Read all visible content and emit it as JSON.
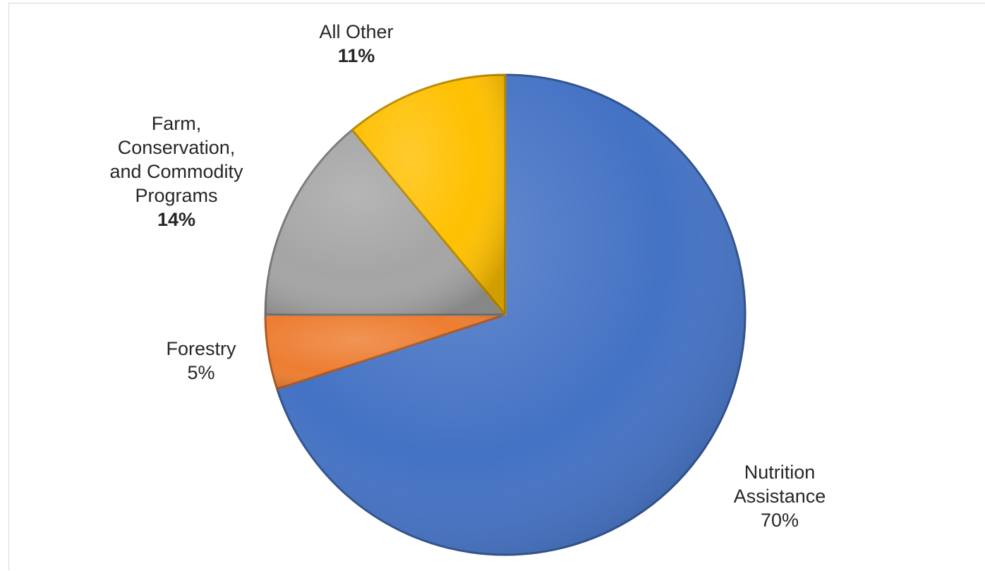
{
  "chart_data": {
    "type": "pie",
    "slices": [
      {
        "name": "Nutrition Assistance",
        "value": 70,
        "pct_label": "70%",
        "color": "#4472C4",
        "label_lines": [
          "Nutrition",
          "Assistance"
        ]
      },
      {
        "name": "Forestry",
        "value": 5,
        "pct_label": "5%",
        "color": "#ED7D31",
        "label_lines": [
          "Forestry"
        ]
      },
      {
        "name": "Farm, Conservation, and Commodity Programs",
        "value": 14,
        "pct_label": "14%",
        "color": "#A5A5A5",
        "label_lines": [
          "Farm,",
          "Conservation,",
          "and Commodity",
          "Programs"
        ]
      },
      {
        "name": "All Other",
        "value": 11,
        "pct_label": "11%",
        "color": "#FFC000",
        "label_lines": [
          "All Other"
        ]
      }
    ],
    "start_angle_deg": 0,
    "direction": "clockwise",
    "legend": "none",
    "title": ""
  }
}
